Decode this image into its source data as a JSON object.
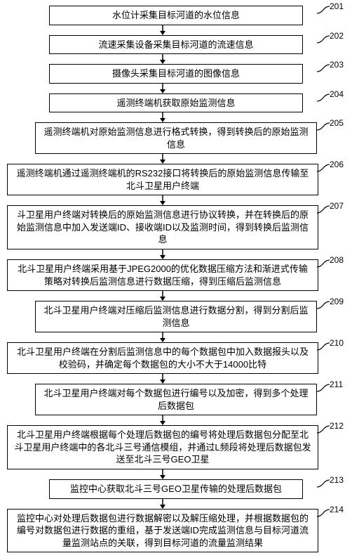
{
  "flowchart": {
    "type": "flowchart",
    "direction": "top-down",
    "background_color": "#ffffff",
    "box_border_color": "#000000",
    "box_border_width": 1.5,
    "box_font_size": 13,
    "label_font_size": 12,
    "arrow_color": "#000000",
    "arrow_height": 14,
    "steps": [
      {
        "id": "201",
        "text": "水位计采集目标河道的水位信息",
        "width": "narrow"
      },
      {
        "id": "202",
        "text": "流速采集设备采集目标河道的流速信息",
        "width": "narrow"
      },
      {
        "id": "203",
        "text": "摄像头采集目标河道的图像信息",
        "width": "narrow"
      },
      {
        "id": "204",
        "text": "遥测终端机获取原始监测信息",
        "width": "narrow"
      },
      {
        "id": "205",
        "text": "遥测终端机对原始监测信息进行格式转换，得到转换后的原始监测信息",
        "width": "mid"
      },
      {
        "id": "206",
        "text": "遥测终端机通过遥测终端机的RS232接口将转换后的原始监测信息传输至北斗卫星用户终端",
        "width": "wide"
      },
      {
        "id": "207",
        "text": "斗卫星用户终端对转换后的原始监测信息进行协议转换，并在转换后的原始监测信息中加入发送端ID、接收端ID以及监测时间，得到转换后监测信息",
        "width": "wide"
      },
      {
        "id": "208",
        "text": "北斗卫星用户终端采用基于JPEG2000的优化数据压缩方法和渐进式传输策略对转换后监测信息进行数据压缩，得到压缩后监测信息",
        "width": "wide"
      },
      {
        "id": "209",
        "text": "北斗卫星用户终端对压缩后监测信息进行数据分割，得到分割后监测信息",
        "width": "mid"
      },
      {
        "id": "210",
        "text": "北斗卫星用户终端在分割后监测信息中的每个数据包中加入数据报头以及校验码，并确定每个数据包的大小不大于14000比特",
        "width": "wide"
      },
      {
        "id": "211",
        "text": "北斗卫星用户终端对每个数据包进行编号以及加密，得到多个处理后数据包",
        "width": "mid"
      },
      {
        "id": "212",
        "text": "北斗卫星用户终端根据每个处理后数据包的编号将处理后数据包分配至北斗卫星用户终端中的各北斗三号通信模组，并通过L频段将处理后数据包发送至北斗三号GEO卫星",
        "width": "wide"
      },
      {
        "id": "213",
        "text": "监控中心获取北斗三号GEO卫星传输的处理后数据包",
        "width": "narrow"
      },
      {
        "id": "214",
        "text": "监控中心对处理后数据包进行数据解密以及解压缩处理，并根据数据包的编号对数据包进行数据的重组，基于发送端ID完成监测信息与目标河道流量监测站点的关联，得到目标河道的流量监测结果",
        "width": "wide"
      }
    ]
  }
}
